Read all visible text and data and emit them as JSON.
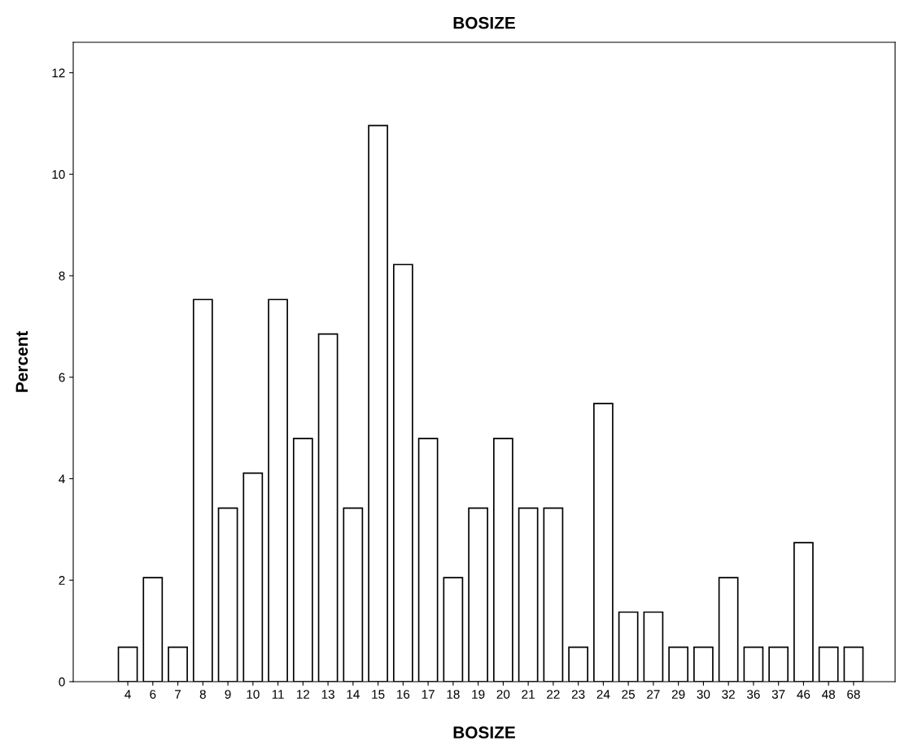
{
  "chart_data": {
    "type": "bar",
    "title": "BOSIZE",
    "xlabel": "BOSIZE",
    "ylabel": "Percent",
    "categories": [
      "4",
      "6",
      "7",
      "8",
      "9",
      "10",
      "11",
      "12",
      "13",
      "14",
      "15",
      "16",
      "17",
      "18",
      "19",
      "20",
      "21",
      "22",
      "23",
      "24",
      "25",
      "27",
      "29",
      "30",
      "32",
      "36",
      "37",
      "46",
      "48",
      "68"
    ],
    "values": [
      0.68,
      2.05,
      0.68,
      7.53,
      3.42,
      4.11,
      7.53,
      4.79,
      6.85,
      3.42,
      10.96,
      8.22,
      4.79,
      2.05,
      3.42,
      4.79,
      3.42,
      3.42,
      0.68,
      5.48,
      1.37,
      1.37,
      0.68,
      0.68,
      2.05,
      0.68,
      0.68,
      2.74,
      0.68,
      0.68
    ],
    "color": "#ffffff",
    "ylim": [
      0,
      12.6
    ],
    "yticks": [
      0,
      2,
      4,
      6,
      8,
      10,
      12
    ],
    "grid": false,
    "legend": false
  }
}
